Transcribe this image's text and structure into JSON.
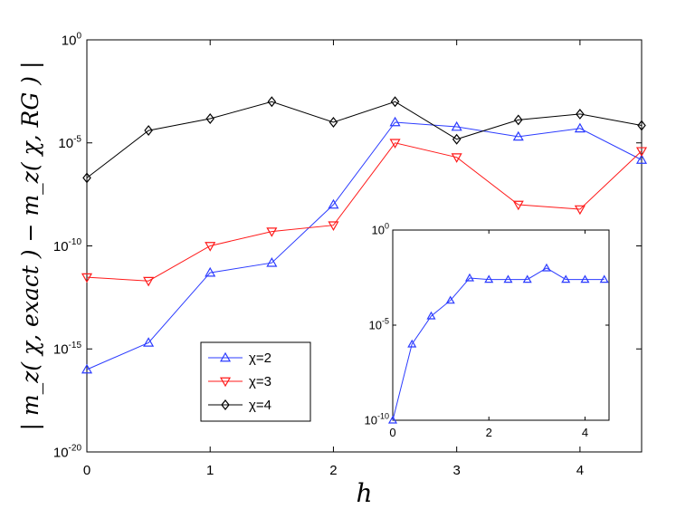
{
  "chart_data": [
    {
      "type": "line",
      "xlabel": "h",
      "ylabel": "| m_z( χ, exact ) − m_z( χ, RG ) |",
      "yscale": "log",
      "xlim": [
        0,
        4.5
      ],
      "ylim": [
        1e-20,
        1
      ],
      "xticks": [
        0,
        1,
        2,
        3,
        4
      ],
      "yticks": [
        1e-20,
        1e-15,
        1e-10,
        1e-05,
        1
      ],
      "ytick_labels": [
        {
          "base": "10",
          "exp": "-20"
        },
        {
          "base": "10",
          "exp": "-15"
        },
        {
          "base": "10",
          "exp": "-10"
        },
        {
          "base": "10",
          "exp": "-5"
        },
        {
          "base": "10",
          "exp": "0"
        }
      ],
      "grid": false,
      "legend_position": "bottom-left",
      "series": [
        {
          "name": "χ=2",
          "color": "#2b3bff",
          "marker": "triangle-up",
          "x": [
            0,
            0.5,
            1,
            1.5,
            2,
            2.5,
            3,
            3.5,
            4,
            4.5
          ],
          "y": [
            1e-16,
            2e-15,
            5e-12,
            1.5e-11,
            1e-08,
            0.0001,
            6e-05,
            2e-05,
            5e-05,
            1.5e-06
          ]
        },
        {
          "name": "χ=3",
          "color": "#ff1a1a",
          "marker": "triangle-down",
          "x": [
            0,
            0.5,
            1,
            1.5,
            2,
            2.5,
            3,
            3.5,
            4,
            4.5
          ],
          "y": [
            3e-12,
            2e-12,
            1e-10,
            5e-10,
            1e-09,
            1e-05,
            2e-06,
            1e-08,
            6e-09,
            4e-06
          ]
        },
        {
          "name": "χ=4",
          "color": "#000000",
          "marker": "diamond",
          "x": [
            0,
            0.5,
            1,
            1.5,
            2,
            2.5,
            3,
            3.5,
            4,
            4.5
          ],
          "y": [
            2e-07,
            4e-05,
            0.00015,
            0.001,
            0.0001,
            0.001,
            1.5e-05,
            0.00013,
            0.00025,
            7e-05
          ]
        }
      ]
    },
    {
      "type": "line",
      "inset": true,
      "xlabel": "",
      "ylabel": "",
      "yscale": "log",
      "xlim": [
        0,
        4.5
      ],
      "ylim": [
        1e-10,
        1
      ],
      "xticks": [
        0,
        2,
        4
      ],
      "yticks": [
        1e-10,
        1e-05,
        1
      ],
      "ytick_labels": [
        {
          "base": "10",
          "exp": "-10"
        },
        {
          "base": "10",
          "exp": "-5"
        },
        {
          "base": "10",
          "exp": "0"
        }
      ],
      "grid": false,
      "series": [
        {
          "color": "#2b3bff",
          "marker": "triangle-up",
          "x": [
            0,
            0.4,
            0.8,
            1.2,
            1.6,
            2.0,
            2.4,
            2.8,
            3.2,
            3.6,
            4.0,
            4.4
          ],
          "y": [
            1e-10,
            1e-06,
            3e-05,
            0.0002,
            0.003,
            0.0025,
            0.0025,
            0.0025,
            0.01,
            0.0025,
            0.0025,
            0.0025
          ]
        }
      ]
    }
  ]
}
